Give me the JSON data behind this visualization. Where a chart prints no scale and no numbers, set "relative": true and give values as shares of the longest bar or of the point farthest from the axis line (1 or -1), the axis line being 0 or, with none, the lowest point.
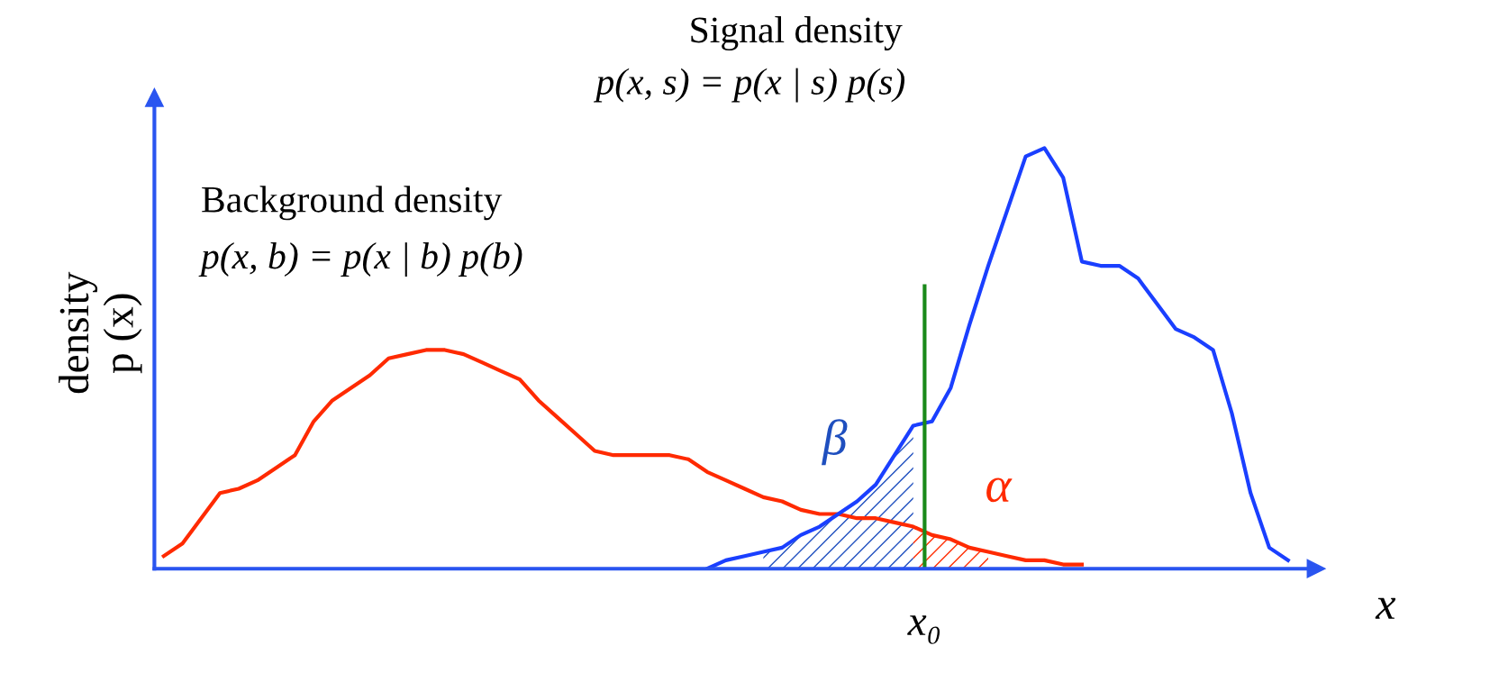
{
  "chart_data": {
    "type": "line",
    "relative": true,
    "xlabel": "x",
    "ylabel": "density\np (x)",
    "categories": [
      null,
      null,
      null,
      null,
      null,
      null,
      null,
      null,
      null,
      null,
      null,
      null,
      null,
      null,
      null,
      null,
      null,
      null,
      null,
      null,
      null,
      null,
      null,
      null,
      null,
      null,
      null,
      null,
      null,
      null,
      null,
      null,
      null,
      null,
      null,
      null,
      null,
      null,
      null,
      null,
      null,
      null,
      null,
      null,
      null,
      null,
      null,
      null,
      null,
      null,
      null,
      null,
      null,
      null,
      null,
      null,
      null,
      null,
      null,
      null,
      null
    ],
    "series": [
      {
        "color": "#ff2a00",
        "values": [
          0.03,
          0.06,
          0.12,
          0.18,
          0.19,
          0.21,
          0.24,
          0.27,
          0.35,
          0.4,
          0.43,
          0.46,
          0.5,
          0.51,
          0.52,
          0.52,
          0.51,
          0.49,
          0.47,
          0.45,
          0.4,
          0.36,
          0.32,
          0.28,
          0.27,
          0.27,
          0.27,
          0.27,
          0.26,
          0.23,
          0.21,
          0.19,
          0.17,
          0.16,
          0.14,
          0.13,
          0.13,
          0.12,
          0.12,
          0.11,
          0.1,
          0.08,
          0.07,
          0.05,
          0.04,
          0.03,
          0.02,
          0.02,
          0.01,
          0.01,
          null,
          null,
          null,
          null,
          null,
          null,
          null,
          null,
          null,
          null,
          null
        ]
      },
      {
        "color": "#1a3fff",
        "values": [
          null,
          null,
          null,
          null,
          null,
          null,
          null,
          null,
          null,
          null,
          null,
          null,
          null,
          null,
          null,
          null,
          null,
          null,
          null,
          null,
          null,
          null,
          null,
          null,
          null,
          null,
          null,
          null,
          null,
          0.0,
          0.02,
          0.03,
          0.04,
          0.05,
          0.08,
          0.1,
          0.13,
          0.16,
          0.2,
          0.27,
          0.34,
          0.35,
          0.43,
          0.58,
          0.72,
          0.85,
          0.98,
          1.0,
          0.93,
          0.73,
          0.72,
          0.72,
          0.69,
          0.63,
          0.57,
          0.55,
          0.52,
          0.37,
          0.18,
          0.05,
          0.02
        ]
      },
      {
        "type": "area",
        "color": "#1f4fbf",
        "values": [
          null,
          null,
          null,
          null,
          null,
          null,
          null,
          null,
          null,
          null,
          null,
          null,
          null,
          null,
          null,
          null,
          null,
          null,
          null,
          null,
          null,
          null,
          null,
          null,
          null,
          null,
          null,
          null,
          null,
          null,
          null,
          null,
          0.04,
          0.05,
          0.08,
          0.1,
          0.13,
          0.16,
          0.2,
          0.27,
          0.34,
          null,
          null,
          null,
          null,
          null,
          null,
          null,
          null,
          null,
          null,
          null,
          null,
          null,
          null,
          null,
          null,
          null,
          null,
          null,
          null
        ]
      },
      {
        "type": "area",
        "color": "#ff2a00",
        "values": [
          null,
          null,
          null,
          null,
          null,
          null,
          null,
          null,
          null,
          null,
          null,
          null,
          null,
          null,
          null,
          null,
          null,
          null,
          null,
          null,
          null,
          null,
          null,
          null,
          null,
          null,
          null,
          null,
          null,
          null,
          null,
          null,
          null,
          null,
          null,
          null,
          null,
          null,
          null,
          null,
          0.1,
          0.08,
          0.07,
          0.05,
          0.04,
          null,
          null,
          null,
          null,
          null,
          null,
          null,
          null,
          null,
          null,
          null,
          null,
          null,
          null,
          null,
          null
        ]
      }
    ],
    "annotations": [
      "Signal density",
      "p(x, s) = p(x | s) p(s)",
      "Background density",
      "p(x, b) = p(x | b) p(b)",
      "β",
      "α",
      "x₀"
    ]
  }
}
